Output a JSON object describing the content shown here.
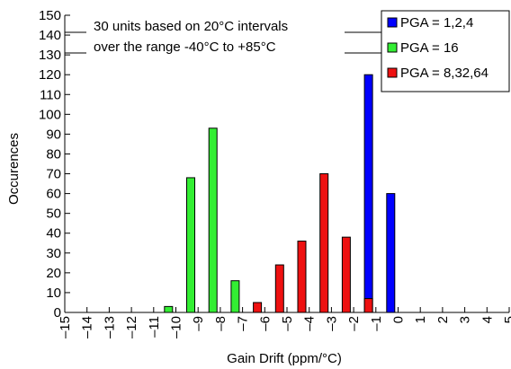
{
  "chart_data": {
    "type": "bar",
    "xlabel": "Gain Drift (ppm/°C)",
    "ylabel": "Occurences",
    "xlim": [
      -15,
      5
    ],
    "ylim": [
      0,
      150
    ],
    "y_ticks": [
      0,
      10,
      20,
      30,
      40,
      50,
      60,
      70,
      80,
      90,
      100,
      110,
      120,
      130,
      140,
      150
    ],
    "x_ticks": [
      -15,
      -14,
      -13,
      -12,
      -11,
      -10,
      -9,
      -8,
      -7,
      -6,
      -5,
      -4,
      -3,
      -2,
      -1,
      0,
      1,
      2,
      3,
      4,
      5
    ],
    "x_tick_labels": [
      "–15",
      "–14",
      "–13",
      "–12",
      "–11",
      "–10",
      "–9",
      "–8",
      "–7",
      "–6",
      "–5",
      "–4",
      "–3",
      "–2",
      "–1",
      "0",
      "1",
      "2",
      "3",
      "4",
      "5"
    ],
    "grid": false,
    "legend_position": "top-right",
    "annotation": {
      "line1": "30 units based on 20°C intervals",
      "line2": "over the range -40°C to +85°C"
    },
    "series": [
      {
        "name": "PGA = 1,2,4",
        "color": "#0000ff",
        "points": [
          {
            "x": -2,
            "y": 120
          },
          {
            "x": -1,
            "y": 60
          }
        ]
      },
      {
        "name": "PGA = 16",
        "color": "#33ee33",
        "points": [
          {
            "x": -11,
            "y": 3
          },
          {
            "x": -10,
            "y": 68
          },
          {
            "x": -9,
            "y": 93
          },
          {
            "x": -8,
            "y": 16
          }
        ]
      },
      {
        "name": "PGA = 8,32,64",
        "color": "#ee1111",
        "points": [
          {
            "x": -7,
            "y": 5
          },
          {
            "x": -6,
            "y": 24
          },
          {
            "x": -5,
            "y": 36
          },
          {
            "x": -4,
            "y": 70
          },
          {
            "x": -3,
            "y": 38
          },
          {
            "x": -2,
            "y": 7
          }
        ]
      }
    ]
  }
}
